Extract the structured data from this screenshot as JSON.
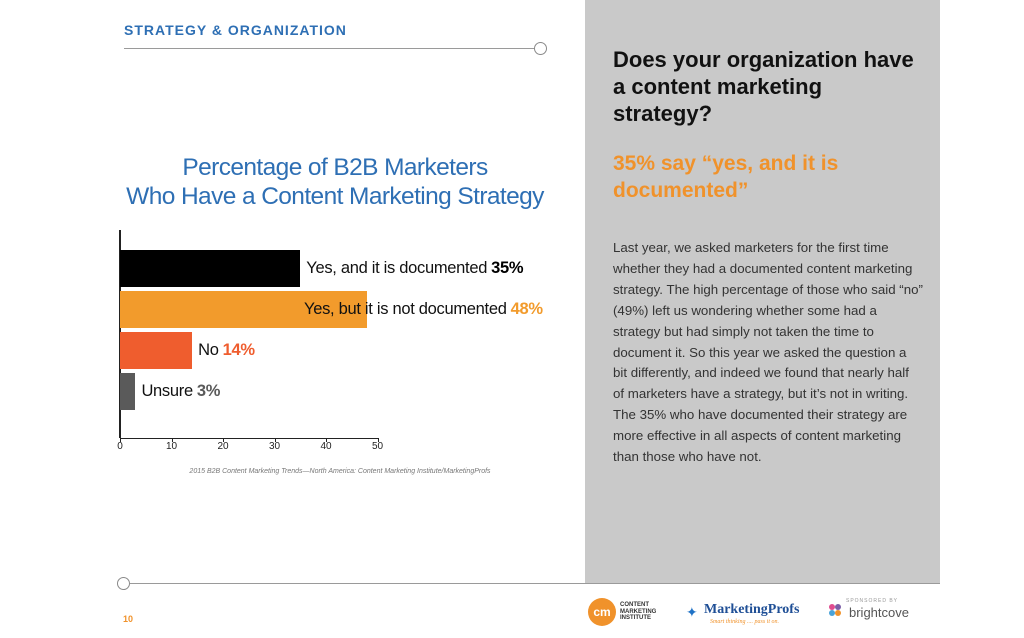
{
  "header": {
    "section_title": "STRATEGY & ORGANIZATION"
  },
  "sidebar": {
    "question": "Does your organization have a content marketing strategy?",
    "answer": "35% say “yes, and it is documented”",
    "body": "Last year, we asked marketers for the first time whether they had a documented content marketing strategy. The high percentage of those who said “no” (49%) left us wondering whether some had a strategy but had simply not taken the time to document it. So this year we asked the question a bit differently, and indeed we found that nearly half of marketers have a strategy, but it’s not in writing. The 35% who have documented their strategy are more effective in all aspects of content marketing than those who have not."
  },
  "chart_data": {
    "type": "bar",
    "orientation": "horizontal",
    "title_line1": "Percentage of B2B Marketers",
    "title_line2": "Who Have a Content Marketing Strategy",
    "categories": [
      "Yes, and it is documented",
      "Yes, but it is not documented",
      "No",
      "Unsure"
    ],
    "values": [
      35,
      48,
      14,
      3
    ],
    "value_labels": [
      "35%",
      "48%",
      "14%",
      "3%"
    ],
    "bar_colors": [
      "#000000",
      "#f29b2c",
      "#ef5d2e",
      "#5a5a5a"
    ],
    "value_colors": [
      "#000000",
      "#f29b2c",
      "#ef5d2e",
      "#5a5a5a"
    ],
    "xlim": [
      0,
      50
    ],
    "ticks": [
      "0",
      "10",
      "20",
      "30",
      "40",
      "50"
    ],
    "grid": false,
    "source": "2015 B2B Content Marketing Trends—North America: Content Marketing Institute/MarketingProfs"
  },
  "footer": {
    "page_number": "10",
    "cmi_badge": "cm",
    "cmi_line1": "CONTENT",
    "cmi_line2": "MARKETING",
    "cmi_line3": "INSTITUTE",
    "mp_name": "MarketingProfs",
    "mp_tagline": "Smart thinking .... pass it on.",
    "sponsored_label": "SPONSORED BY",
    "sponsor_name": "brightcove"
  },
  "colors": {
    "accent_blue": "#2e6fb4",
    "accent_orange": "#f0922b",
    "panel_gray": "#c9c9c9"
  }
}
